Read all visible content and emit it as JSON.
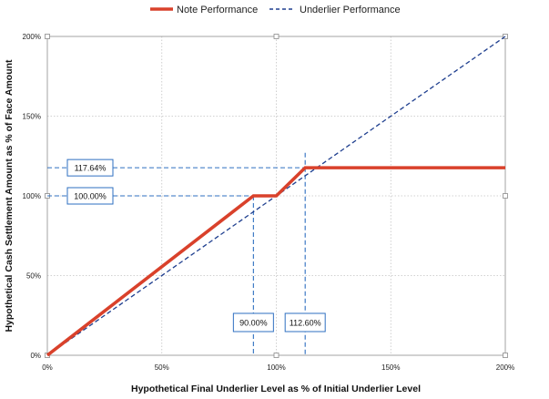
{
  "chart_data": {
    "type": "line",
    "xlabel": "Hypothetical Final Underlier Level as % of Initial Underlier Level",
    "ylabel": "Hypothetical Cash Settlement Amount as % of Face Amount",
    "xlim": [
      0,
      200
    ],
    "ylim": [
      0,
      200
    ],
    "x_ticks": [
      "0%",
      "50%",
      "100%",
      "150%",
      "200%"
    ],
    "y_ticks": [
      "0%",
      "50%",
      "100%",
      "150%",
      "200%"
    ],
    "grid": true,
    "legend_position": "top",
    "series": [
      {
        "name": "Note Performance",
        "color": "#d9412b",
        "style": "solid",
        "x": [
          0,
          90,
          100,
          112.6,
          200
        ],
        "y": [
          0,
          100,
          100,
          117.64,
          117.64
        ]
      },
      {
        "name": "Underlier Performance",
        "color": "#1f3f8f",
        "style": "dashed",
        "x": [
          0,
          200
        ],
        "y": [
          0,
          200
        ]
      }
    ],
    "annotations": [
      {
        "label": "117.64%",
        "axis": "y",
        "value": 117.64,
        "to_x": 112.6
      },
      {
        "label": "100.00%",
        "axis": "y",
        "value": 100,
        "to_x": 90
      },
      {
        "label": "90.00%",
        "axis": "x",
        "value": 90,
        "to_y": 100
      },
      {
        "label": "112.60%",
        "axis": "x",
        "value": 112.6,
        "to_y": 127
      }
    ],
    "guide_color": "#2e6fc0"
  }
}
